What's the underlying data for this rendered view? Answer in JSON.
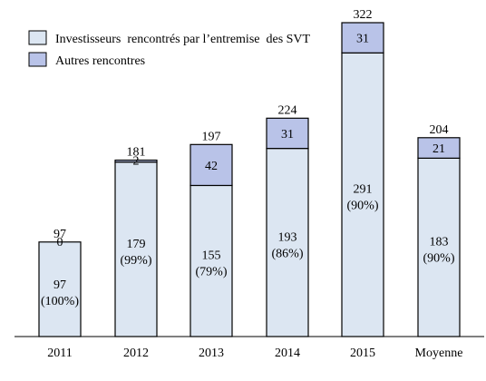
{
  "chart_data": {
    "type": "bar",
    "stacked": true,
    "categories": [
      "2011",
      "2012",
      "2013",
      "2014",
      "2015",
      "Moyenne"
    ],
    "series": [
      {
        "name": "Investisseurs  rencontrés par l’entremise  des SVT",
        "values": [
          97,
          179,
          155,
          193,
          291,
          183
        ],
        "pct_labels": [
          "(100%)",
          "(99%)",
          "(79%)",
          "(86%)",
          "(90%)",
          "(90%)"
        ],
        "color": "#dce6f2"
      },
      {
        "name": "Autres rencontres",
        "values": [
          0,
          2,
          42,
          31,
          31,
          21
        ],
        "color": "#b9c3e8"
      }
    ],
    "totals": [
      97,
      181,
      197,
      224,
      322,
      204
    ],
    "ylim": [
      0,
      322
    ],
    "grid": false,
    "legend_position": "top-left",
    "edge_color": "#000000"
  }
}
